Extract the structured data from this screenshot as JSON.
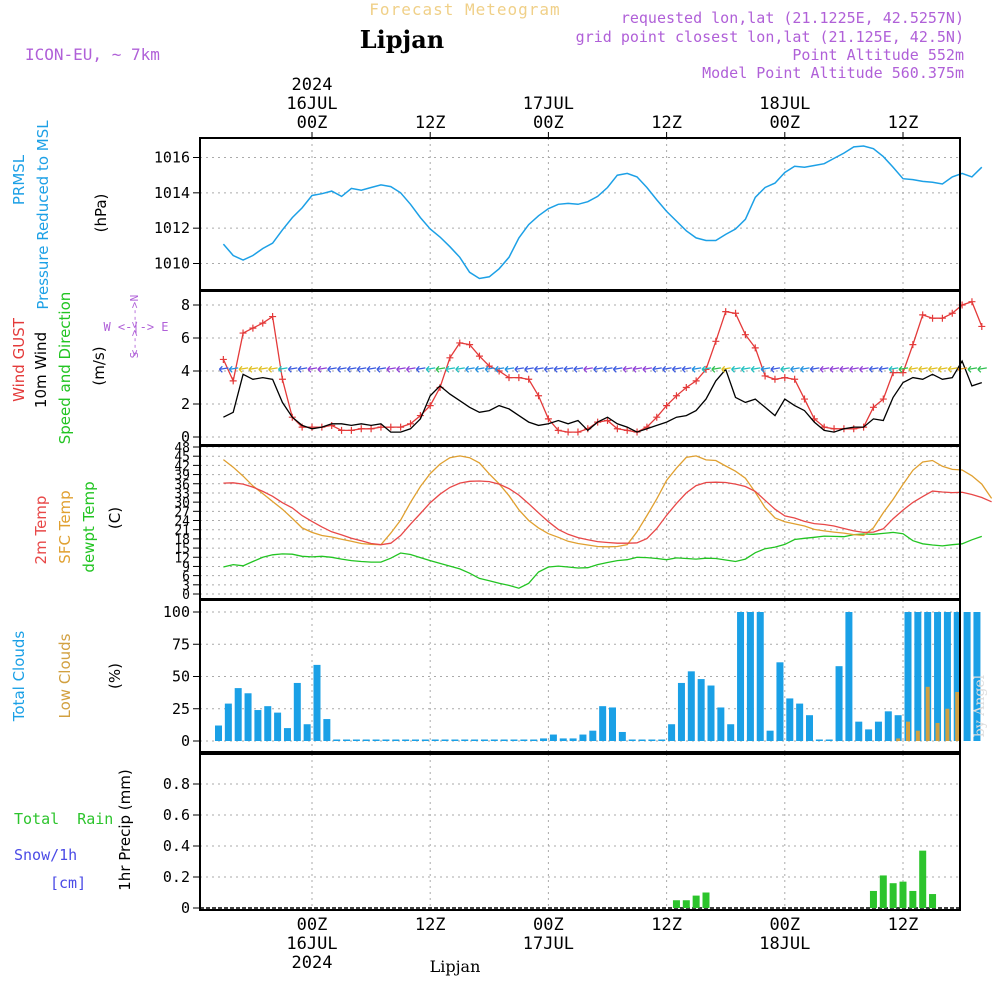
{
  "header": {
    "product": "Forecast Meteogram",
    "location": "Lipjan",
    "model": "ICON-EU, ~ 7km",
    "requested": "requested lon,lat (21.1225E, 42.5257N)",
    "gridpoint": "grid point closest lon,lat (21.125E, 42.5N)",
    "point_alt": "Point Altitude 552m",
    "model_alt": "Model Point Altitude 560.375m",
    "footer_location": "Lipjan",
    "watermark": "by Angel"
  },
  "time_axis": {
    "top": [
      {
        "h": 0,
        "lines": [
          "2024",
          "16JUL",
          "00Z"
        ]
      },
      {
        "h": 12,
        "lines": [
          "12Z"
        ]
      },
      {
        "h": 24,
        "lines": [
          "17JUL",
          "00Z"
        ]
      },
      {
        "h": 36,
        "lines": [
          "12Z"
        ]
      },
      {
        "h": 48,
        "lines": [
          "18JUL",
          "00Z"
        ]
      },
      {
        "h": 60,
        "lines": [
          "12Z"
        ]
      }
    ],
    "bottom": [
      {
        "h": 0,
        "lines": [
          "00Z",
          "16JUL",
          "2024"
        ]
      },
      {
        "h": 12,
        "lines": [
          "12Z"
        ]
      },
      {
        "h": 24,
        "lines": [
          "00Z",
          "17JUL"
        ]
      },
      {
        "h": 36,
        "lines": [
          "12Z"
        ]
      },
      {
        "h": 48,
        "lines": [
          "00Z",
          "18JUL"
        ]
      },
      {
        "h": 60,
        "lines": [
          "12Z"
        ]
      }
    ]
  },
  "panels": {
    "pressure": {
      "label1": "PRMSL",
      "label2": "Pressure Reduced to MSL",
      "unit": "(hPa)"
    },
    "wind": {
      "label_gust": "Wind GUST",
      "label_10m": "10m Wind",
      "label_dir": "Speed and Direction",
      "unit": "(m/s)",
      "compass_n": "N",
      "compass_s": "S",
      "compass_row": "W <-|-> E",
      "compass_top": "<-->",
      "compass_bottom": "<-->"
    },
    "temp": {
      "label_2m": "2m Temp",
      "label_sfc": "SFC Temp",
      "label_dew": "dewpt Temp",
      "unit": "(C)"
    },
    "clouds": {
      "label_total": "Total Clouds",
      "label_low": "Low Clouds",
      "unit": "(%)"
    },
    "precip": {
      "label_rain": "Total  Rain",
      "label_snow": "Snow/1h",
      "label_cm": "[cm]",
      "unit": "1hr Precip (mm)"
    }
  },
  "colors": {
    "pressure": "#1ca0e6",
    "gust": "#e43a3a",
    "wind": "#000000",
    "t2m": "#e84848",
    "tsfc": "#e0a030",
    "dewpt": "#22c422",
    "total_clouds": "#1aa0e6",
    "low_clouds": "#d2a040",
    "rain": "#2cc42c",
    "snow": "#4a4ae6",
    "purple": "#b060d8",
    "title": "#f0d088"
  },
  "chart_data": [
    {
      "type": "line",
      "title": "PRMSL Pressure Reduced to MSL",
      "ylabel": "(hPa)",
      "ylim": [
        1009,
        1016.8
      ],
      "yticks": [
        1010,
        1012,
        1014,
        1016
      ],
      "x_hours_from": -9,
      "x_step_hours": 1,
      "series": [
        {
          "name": "PRMSL",
          "values": [
            1011.1,
            1010.45,
            1010.2,
            1010.45,
            1010.85,
            1011.15,
            1011.9,
            1012.6,
            1013.15,
            1013.85,
            1013.95,
            1014.1,
            1013.8,
            1014.25,
            1014.15,
            1014.3,
            1014.45,
            1014.35,
            1014.0,
            1013.35,
            1012.6,
            1011.95,
            1011.5,
            1010.95,
            1010.35,
            1009.5,
            1009.15,
            1009.25,
            1009.7,
            1010.35,
            1011.45,
            1012.2,
            1012.7,
            1013.1,
            1013.35,
            1013.4,
            1013.35,
            1013.5,
            1013.8,
            1014.3,
            1015.0,
            1015.1,
            1014.9,
            1014.3,
            1013.6,
            1012.95,
            1012.4,
            1011.85,
            1011.45,
            1011.3,
            1011.3,
            1011.65,
            1011.95,
            1012.5,
            1013.75,
            1014.3,
            1014.55,
            1015.15,
            1015.5,
            1015.45,
            1015.55,
            1015.65,
            1015.95,
            1016.25,
            1016.6,
            1016.65,
            1016.5,
            1016.05,
            1015.45,
            1014.8,
            1014.75,
            1014.65,
            1014.6,
            1014.5,
            1014.9,
            1015.1,
            1014.9,
            1015.45
          ]
        }
      ]
    },
    {
      "type": "line",
      "title": "Wind GUST / 10m Wind",
      "ylabel": "(m/s)",
      "ylim": [
        0,
        8.8
      ],
      "yticks": [
        0,
        2,
        4,
        6,
        8
      ],
      "x_hours_from": -9,
      "x_step_hours": 1,
      "series": [
        {
          "name": "Wind GUST",
          "values": [
            4.7,
            3.4,
            6.3,
            6.6,
            6.9,
            7.3,
            3.5,
            1.2,
            0.6,
            0.6,
            0.6,
            0.7,
            0.4,
            0.4,
            0.5,
            0.5,
            0.6,
            0.6,
            0.6,
            0.8,
            1.3,
            1.9,
            3.0,
            4.8,
            5.7,
            5.6,
            4.9,
            4.3,
            4.0,
            3.6,
            3.6,
            3.5,
            2.5,
            1.1,
            0.4,
            0.3,
            0.3,
            0.5,
            0.9,
            1.0,
            0.5,
            0.4,
            0.3,
            0.6,
            1.2,
            1.9,
            2.5,
            3.0,
            3.4,
            4.1,
            5.8,
            7.6,
            7.5,
            6.2,
            5.4,
            3.7,
            3.5,
            3.6,
            3.5,
            2.3,
            1.1,
            0.6,
            0.5,
            0.5,
            0.5,
            0.6,
            1.8,
            2.3,
            3.9,
            3.9,
            5.6,
            7.4,
            7.2,
            7.2,
            7.5,
            8.0,
            8.2,
            6.7
          ]
        },
        {
          "name": "10m Wind",
          "values": [
            1.2,
            1.5,
            3.8,
            3.5,
            3.6,
            3.5,
            2.1,
            1.2,
            0.7,
            0.5,
            0.6,
            0.8,
            0.8,
            0.7,
            0.8,
            0.7,
            0.8,
            0.3,
            0.3,
            0.5,
            1.1,
            2.5,
            3.1,
            2.6,
            2.2,
            1.8,
            1.5,
            1.6,
            1.9,
            1.7,
            1.3,
            0.9,
            0.7,
            0.8,
            1.0,
            0.8,
            1.0,
            0.4,
            0.9,
            1.2,
            0.8,
            0.6,
            0.3,
            0.5,
            0.7,
            0.9,
            1.2,
            1.3,
            1.6,
            2.3,
            3.4,
            4.1,
            2.4,
            2.1,
            2.3,
            1.8,
            1.3,
            2.3,
            1.9,
            1.6,
            0.9,
            0.4,
            0.3,
            0.5,
            0.6,
            0.6,
            1.1,
            1.0,
            2.4,
            3.3,
            3.6,
            3.5,
            3.8,
            3.5,
            3.6,
            4.6,
            3.1,
            3.3
          ]
        }
      ]
    },
    {
      "type": "line",
      "title": "2m Temp / SFC Temp / dewpt Temp",
      "ylabel": "(C)",
      "ylim": [
        -1,
        48
      ],
      "yticks": [
        0,
        3,
        6,
        9,
        12,
        15,
        18,
        21,
        24,
        27,
        30,
        33,
        36,
        39,
        42,
        45,
        48
      ],
      "x_hours_from": -9,
      "x_step_hours": 1,
      "series": [
        {
          "name": "2m Temp",
          "values": [
            36.2,
            36.3,
            35.9,
            34.9,
            33.5,
            31.9,
            29.8,
            28.1,
            25.6,
            23.7,
            21.9,
            20.3,
            19.3,
            18.2,
            17.4,
            16.5,
            16.1,
            16.6,
            19.1,
            22.8,
            26.3,
            29.8,
            32.6,
            34.8,
            36.2,
            36.8,
            36.9,
            36.7,
            35.9,
            34.4,
            32.3,
            29.5,
            26.5,
            23.6,
            21.1,
            19.5,
            18.4,
            17.7,
            17.1,
            16.8,
            16.6,
            16.6,
            16.7,
            18.1,
            21.4,
            25.7,
            29.6,
            33.0,
            35.4,
            36.4,
            36.5,
            36.4,
            35.9,
            35.1,
            33.5,
            30.6,
            27.7,
            25.5,
            24.8,
            23.7,
            23.0,
            22.7,
            22.2,
            21.4,
            20.6,
            20.1,
            20.2,
            21.3,
            24.6,
            27.4,
            29.9,
            31.8,
            33.6,
            33.3,
            33.1,
            33.2,
            32.5,
            31.5,
            30.1
          ]
        },
        {
          "name": "SFC Temp",
          "values": [
            43.9,
            41.4,
            38.5,
            35.3,
            32.8,
            30.2,
            27.7,
            24.7,
            21.6,
            20.1,
            19.1,
            18.6,
            17.9,
            17.2,
            16.5,
            16.2,
            16.1,
            19.9,
            24.1,
            29.9,
            35.1,
            39.3,
            42.4,
            44.5,
            45.1,
            44.5,
            42.8,
            39.2,
            36.0,
            32.1,
            27.5,
            24.0,
            21.6,
            19.7,
            18.5,
            17.2,
            16.5,
            16.0,
            15.5,
            15.4,
            15.5,
            16.1,
            20.3,
            25.6,
            31.1,
            37.1,
            41.1,
            44.6,
            45.1,
            43.8,
            43.6,
            41.8,
            40.1,
            37.8,
            33.2,
            28.2,
            24.8,
            23.6,
            22.9,
            22.2,
            21.1,
            20.6,
            20.2,
            19.9,
            19.4,
            19.1,
            21.6,
            26.5,
            30.9,
            35.8,
            40.4,
            43.1,
            43.6,
            41.7,
            40.7,
            40.5,
            38.6,
            35.9,
            31.2
          ]
        },
        {
          "name": "dewpt Temp",
          "values": [
            8.8,
            9.6,
            9.2,
            10.6,
            12.0,
            12.8,
            13.1,
            13.0,
            12.3,
            12.1,
            12.3,
            12.0,
            11.4,
            10.9,
            10.6,
            10.4,
            10.4,
            11.7,
            13.4,
            12.9,
            11.9,
            10.9,
            10.0,
            9.1,
            8.2,
            6.8,
            5.1,
            4.3,
            3.5,
            2.8,
            1.9,
            3.5,
            7.2,
            8.8,
            9.1,
            8.8,
            8.5,
            8.6,
            9.6,
            10.3,
            10.9,
            11.2,
            12.0,
            11.9,
            11.6,
            11.2,
            11.8,
            11.6,
            11.4,
            11.7,
            11.6,
            11.1,
            10.6,
            11.4,
            13.5,
            14.8,
            15.3,
            16.2,
            17.8,
            18.2,
            18.5,
            18.9,
            18.8,
            18.7,
            19.4,
            19.6,
            19.5,
            19.8,
            20.1,
            19.7,
            17.4,
            16.4,
            16.0,
            15.7,
            16.1,
            16.4,
            17.7,
            18.8
          ]
        }
      ]
    },
    {
      "type": "bar",
      "title": "Total Clouds / Low Clouds",
      "ylabel": "(%)",
      "ylim": [
        -8,
        105
      ],
      "yticks": [
        0,
        25,
        50,
        75,
        100
      ],
      "x_hours_from": -10,
      "x_step_hours": 1,
      "series": [
        {
          "name": "Total Clouds",
          "values": [
            12,
            29,
            41,
            37,
            24,
            27,
            22,
            10,
            45,
            13,
            59,
            17,
            0,
            0,
            0,
            0,
            0,
            0,
            0,
            0,
            0,
            0,
            0,
            0,
            0,
            0,
            0,
            0,
            0,
            0,
            0,
            0,
            0,
            2,
            5,
            2,
            2,
            5,
            8,
            27,
            26,
            7,
            0,
            0,
            0,
            0,
            13,
            45,
            54,
            48,
            43,
            26,
            13,
            100,
            100,
            100,
            8,
            61,
            33,
            29,
            20,
            0,
            0,
            58,
            100,
            15,
            9,
            15,
            23,
            20,
            100,
            100,
            100,
            100,
            100,
            100,
            100,
            100
          ]
        },
        {
          "name": "Low Clouds",
          "values": [
            0,
            0,
            0,
            0,
            0,
            0,
            0,
            0,
            0,
            0,
            0,
            0,
            0,
            0,
            0,
            0,
            0,
            0,
            0,
            0,
            0,
            0,
            0,
            0,
            0,
            0,
            0,
            0,
            0,
            0,
            0,
            0,
            0,
            0,
            0,
            0,
            0,
            0,
            0,
            0,
            0,
            0,
            0,
            0,
            0,
            0,
            0,
            0,
            0,
            0,
            0,
            0,
            0,
            0,
            0,
            0,
            0,
            0,
            0,
            0,
            0,
            0,
            0,
            0,
            0,
            0,
            0,
            0,
            0,
            2,
            15,
            8,
            42,
            14,
            25,
            38,
            0,
            0
          ]
        }
      ]
    },
    {
      "type": "bar",
      "title": "1hr Precip (mm)",
      "ylabel": "1hr Precip (mm)",
      "ylim": [
        0,
        1.0
      ],
      "yticks": [
        0,
        0.2,
        0.4,
        0.6,
        0.8
      ],
      "x_hours_from": 36,
      "x_step_hours": 1,
      "series": [
        {
          "name": "Total Rain",
          "values": [
            0,
            0.05,
            0.05,
            0.08,
            0.1,
            0,
            0,
            0,
            0,
            0,
            0,
            0,
            0,
            0,
            0,
            0,
            0,
            0,
            0,
            0,
            0,
            0.11,
            0.21,
            0.16,
            0.17,
            0.11,
            0.37,
            0.09
          ]
        }
      ]
    }
  ]
}
